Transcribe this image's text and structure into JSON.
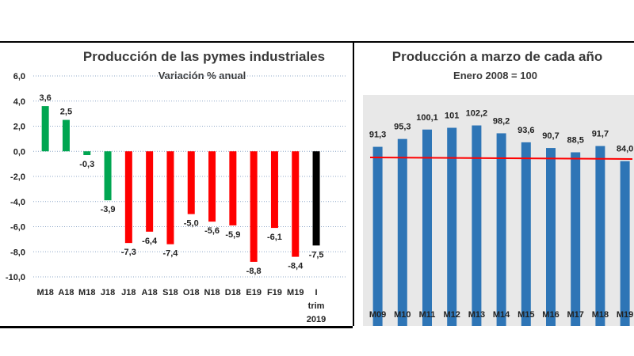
{
  "chart_data": [
    {
      "type": "bar",
      "title": "Producción de las pymes industriales",
      "subtitle": "Variación % anual",
      "categories": [
        "M18",
        "A18",
        "M18",
        "J18",
        "J18",
        "A18",
        "S18",
        "O18",
        "N18",
        "D18",
        "E19",
        "F19",
        "M19",
        "I trim 2019"
      ],
      "category_lines": [
        [
          "M18"
        ],
        [
          "A18"
        ],
        [
          "M18"
        ],
        [
          "J18"
        ],
        [
          "J18"
        ],
        [
          "A18"
        ],
        [
          "S18"
        ],
        [
          "O18"
        ],
        [
          "N18"
        ],
        [
          "D18"
        ],
        [
          "E19"
        ],
        [
          "F19"
        ],
        [
          "M19"
        ],
        [
          "I",
          "trim",
          "2019"
        ]
      ],
      "values": [
        3.6,
        2.5,
        -0.3,
        -3.9,
        -7.3,
        -6.4,
        -7.4,
        -5.0,
        -5.6,
        -5.9,
        -8.8,
        -6.1,
        -8.4,
        -7.5
      ],
      "value_labels": [
        "3,6",
        "2,5",
        "-0,3",
        "-3,9",
        "-7,3",
        "-6,4",
        "-7,4",
        "-5,0",
        "-5,6",
        "-5,9",
        "-8,8",
        "-6,1",
        "-8,4",
        "-7,5"
      ],
      "bar_colors": [
        "#00a651",
        "#00a651",
        "#00a651",
        "#00a651",
        "#ff0000",
        "#ff0000",
        "#ff0000",
        "#ff0000",
        "#ff0000",
        "#ff0000",
        "#ff0000",
        "#ff0000",
        "#ff0000",
        "#000000"
      ],
      "y_ticks": [
        6,
        4,
        2,
        0,
        -2,
        -4,
        -6,
        -8,
        -10
      ],
      "y_tick_labels": [
        "6,0",
        "4,0",
        "2,0",
        "0,0",
        "-2,0",
        "-4,0",
        "-6,0",
        "-8,0",
        "-10,0"
      ],
      "ylim": [
        -10,
        6
      ],
      "grid": true
    },
    {
      "type": "bar",
      "title": "Producción a marzo de cada año",
      "subtitle": "Enero 2008 = 100",
      "categories": [
        "M09",
        "M10",
        "M11",
        "M12",
        "M13",
        "M14",
        "M15",
        "M16",
        "M17",
        "M18",
        "M19"
      ],
      "values": [
        91.3,
        95.3,
        100.1,
        101,
        102.2,
        98.2,
        93.6,
        90.7,
        88.5,
        91.7,
        84.0
      ],
      "value_labels": [
        "91,3",
        "95,3",
        "100,1",
        "101",
        "102,2",
        "98,2",
        "93,6",
        "90,7",
        "88,5",
        "91,7",
        "84,0"
      ],
      "bar_color": "#2e75b6",
      "reference_line_color": "#ff0000",
      "background": "#e8e8e8",
      "grid": false
    }
  ]
}
